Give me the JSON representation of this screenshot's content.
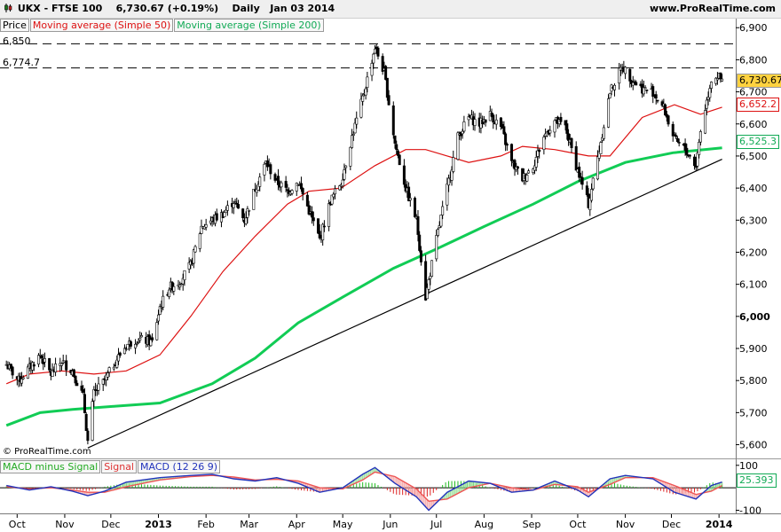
{
  "header": {
    "instrument": "UKX - FTSE 100",
    "quote": "6,730.67 (+0.19%)",
    "period": "Daily",
    "date": "Jan 03 2014",
    "site": "www.ProRealTime.com"
  },
  "legend": {
    "price": "Price",
    "ma50": "Moving average (Simple 50)",
    "ma200": "Moving average (Simple 200)"
  },
  "level_labels": {
    "l1": "6,850",
    "l2": "6,774.7"
  },
  "badges": {
    "last": "6,730.67",
    "ma50": "6,652.2",
    "ma200": "6,525.3",
    "macd": "25.393"
  },
  "copyright": "© ProRealTime.com",
  "macd_legend": {
    "hist": "MACD minus Signal",
    "signal": "Signal",
    "macd": "MACD (12 26 9)"
  },
  "colors": {
    "ma50": "#dd1111",
    "ma200": "#11cc55",
    "trendline": "#000000",
    "candle_up": "#ffffff",
    "candle_down": "#000000",
    "macd_line": "#2233bb",
    "signal_line": "#ee5555",
    "hist_pos": "#22bb22",
    "hist_neg": "#dd2222",
    "last_badge": "#ffd23f"
  },
  "chart_data": [
    {
      "type": "candlestick",
      "title": "UKX - FTSE 100",
      "ylim": [
        5560,
        6920
      ],
      "y_ticks": [
        5600,
        5700,
        5800,
        5900,
        6000,
        6100,
        6200,
        6300,
        6400,
        6500,
        6600,
        6700,
        6800,
        6900
      ],
      "y_tick_labels": [
        "5,600",
        "5,700",
        "5,800",
        "5,900",
        "6,000",
        "6,100",
        "6,200",
        "6,300",
        "6,400",
        "6,500",
        "6,600",
        "6,700",
        "6,800",
        "6,900"
      ],
      "y_tick_emphasis": "6,000",
      "x_tick_labels": [
        "Oct",
        "Nov",
        "Dec",
        "2013",
        "Feb",
        "Mar",
        "Apr",
        "May",
        "Jun",
        "Jul",
        "Aug",
        "Sep",
        "Oct",
        "Nov",
        "Dec",
        "2014"
      ],
      "x_tick_dates": [
        "2012-10-01",
        "2012-11-01",
        "2012-12-01",
        "2013-01-01",
        "2013-02-01",
        "2013-03-01",
        "2013-04-01",
        "2013-05-01",
        "2013-06-01",
        "2013-07-01",
        "2013-08-01",
        "2013-09-01",
        "2013-10-01",
        "2013-11-01",
        "2013-12-01",
        "2014-01-01"
      ],
      "horizontal_levels": [
        6850,
        6774.7
      ],
      "trendline": [
        [
          "2012-11-16",
          5590
        ],
        [
          "2014-01-03",
          6490
        ]
      ],
      "close_path": [
        [
          "2012-09-24",
          5850
        ],
        [
          "2012-10-02",
          5800
        ],
        [
          "2012-10-09",
          5840
        ],
        [
          "2012-10-16",
          5880
        ],
        [
          "2012-10-23",
          5820
        ],
        [
          "2012-10-30",
          5860
        ],
        [
          "2012-11-06",
          5830
        ],
        [
          "2012-11-13",
          5750
        ],
        [
          "2012-11-16",
          5610
        ],
        [
          "2012-11-20",
          5760
        ],
        [
          "2012-11-27",
          5800
        ],
        [
          "2012-12-04",
          5860
        ],
        [
          "2012-12-11",
          5910
        ],
        [
          "2012-12-18",
          5930
        ],
        [
          "2012-12-28",
          5920
        ],
        [
          "2013-01-02",
          6030
        ],
        [
          "2013-01-08",
          6090
        ],
        [
          "2013-01-15",
          6110
        ],
        [
          "2013-01-22",
          6160
        ],
        [
          "2013-01-29",
          6280
        ],
        [
          "2013-02-05",
          6300
        ],
        [
          "2013-02-12",
          6320
        ],
        [
          "2013-02-19",
          6360
        ],
        [
          "2013-02-26",
          6300
        ],
        [
          "2013-03-05",
          6400
        ],
        [
          "2013-03-12",
          6480
        ],
        [
          "2013-03-19",
          6420
        ],
        [
          "2013-03-26",
          6390
        ],
        [
          "2013-04-02",
          6420
        ],
        [
          "2013-04-09",
          6330
        ],
        [
          "2013-04-16",
          6240
        ],
        [
          "2013-04-23",
          6360
        ],
        [
          "2013-04-30",
          6420
        ],
        [
          "2013-05-07",
          6560
        ],
        [
          "2013-05-14",
          6680
        ],
        [
          "2013-05-22",
          6840
        ],
        [
          "2013-05-28",
          6760
        ],
        [
          "2013-06-04",
          6540
        ],
        [
          "2013-06-11",
          6400
        ],
        [
          "2013-06-18",
          6300
        ],
        [
          "2013-06-24",
          6060
        ],
        [
          "2013-07-01",
          6240
        ],
        [
          "2013-07-08",
          6400
        ],
        [
          "2013-07-15",
          6560
        ],
        [
          "2013-07-22",
          6620
        ],
        [
          "2013-07-29",
          6600
        ],
        [
          "2013-08-05",
          6630
        ],
        [
          "2013-08-12",
          6590
        ],
        [
          "2013-08-19",
          6480
        ],
        [
          "2013-08-26",
          6430
        ],
        [
          "2013-09-02",
          6470
        ],
        [
          "2013-09-09",
          6560
        ],
        [
          "2013-09-16",
          6610
        ],
        [
          "2013-09-23",
          6590
        ],
        [
          "2013-09-30",
          6470
        ],
        [
          "2013-10-08",
          6350
        ],
        [
          "2013-10-15",
          6520
        ],
        [
          "2013-10-22",
          6700
        ],
        [
          "2013-10-30",
          6780
        ],
        [
          "2013-11-05",
          6740
        ],
        [
          "2013-11-12",
          6710
        ],
        [
          "2013-11-19",
          6700
        ],
        [
          "2013-11-26",
          6650
        ],
        [
          "2013-12-03",
          6550
        ],
        [
          "2013-12-10",
          6520
        ],
        [
          "2013-12-17",
          6470
        ],
        [
          "2013-12-20",
          6580
        ],
        [
          "2013-12-27",
          6740
        ],
        [
          "2013-12-31",
          6750
        ],
        [
          "2014-01-03",
          6730.67
        ]
      ],
      "series": [
        {
          "name": "Moving average (Simple 50)",
          "points": [
            [
              "2012-09-24",
              5790
            ],
            [
              "2012-10-09",
              5820
            ],
            [
              "2012-10-30",
              5830
            ],
            [
              "2012-11-20",
              5820
            ],
            [
              "2012-12-11",
              5830
            ],
            [
              "2013-01-02",
              5880
            ],
            [
              "2013-01-22",
              6000
            ],
            [
              "2013-02-12",
              6140
            ],
            [
              "2013-03-05",
              6250
            ],
            [
              "2013-03-26",
              6350
            ],
            [
              "2013-04-09",
              6390
            ],
            [
              "2013-04-30",
              6400
            ],
            [
              "2013-05-22",
              6470
            ],
            [
              "2013-06-11",
              6520
            ],
            [
              "2013-06-24",
              6520
            ],
            [
              "2013-07-08",
              6500
            ],
            [
              "2013-07-22",
              6480
            ],
            [
              "2013-08-12",
              6500
            ],
            [
              "2013-08-26",
              6530
            ],
            [
              "2013-09-16",
              6520
            ],
            [
              "2013-10-08",
              6500
            ],
            [
              "2013-10-22",
              6500
            ],
            [
              "2013-11-12",
              6620
            ],
            [
              "2013-12-03",
              6660
            ],
            [
              "2013-12-20",
              6630
            ],
            [
              "2014-01-03",
              6652.2
            ]
          ]
        },
        {
          "name": "Moving average (Simple 200)",
          "points": [
            [
              "2012-09-24",
              5660
            ],
            [
              "2012-10-16",
              5700
            ],
            [
              "2012-11-06",
              5710
            ],
            [
              "2012-12-04",
              5720
            ],
            [
              "2013-01-02",
              5730
            ],
            [
              "2013-02-05",
              5790
            ],
            [
              "2013-03-05",
              5870
            ],
            [
              "2013-04-02",
              5980
            ],
            [
              "2013-05-01",
              6060
            ],
            [
              "2013-06-03",
              6150
            ],
            [
              "2013-07-01",
              6210
            ],
            [
              "2013-08-01",
              6280
            ],
            [
              "2013-09-02",
              6350
            ],
            [
              "2013-10-01",
              6420
            ],
            [
              "2013-11-01",
              6480
            ],
            [
              "2013-12-02",
              6510
            ],
            [
              "2014-01-03",
              6525.3
            ]
          ]
        }
      ]
    },
    {
      "type": "macd",
      "title": "MACD (12 26 9)",
      "ylim": [
        -110,
        115
      ],
      "y_ticks": [
        100,
        -100
      ],
      "y_tick_labels": [
        "100",
        "-100"
      ],
      "zero_line": 0,
      "series": [
        {
          "name": "MACD (12 26 9)",
          "points": [
            [
              "2012-09-24",
              10
            ],
            [
              "2012-10-09",
              -10
            ],
            [
              "2012-10-23",
              5
            ],
            [
              "2012-11-06",
              -15
            ],
            [
              "2012-11-16",
              -35
            ],
            [
              "2012-11-27",
              -15
            ],
            [
              "2012-12-11",
              25
            ],
            [
              "2013-01-02",
              45
            ],
            [
              "2013-01-22",
              55
            ],
            [
              "2013-02-05",
              60
            ],
            [
              "2013-02-19",
              40
            ],
            [
              "2013-03-05",
              30
            ],
            [
              "2013-03-19",
              45
            ],
            [
              "2013-04-02",
              20
            ],
            [
              "2013-04-16",
              -20
            ],
            [
              "2013-05-01",
              0
            ],
            [
              "2013-05-14",
              60
            ],
            [
              "2013-05-22",
              90
            ],
            [
              "2013-06-04",
              20
            ],
            [
              "2013-06-18",
              -40
            ],
            [
              "2013-06-26",
              -100
            ],
            [
              "2013-07-08",
              -20
            ],
            [
              "2013-07-22",
              30
            ],
            [
              "2013-08-05",
              20
            ],
            [
              "2013-08-19",
              -20
            ],
            [
              "2013-09-02",
              -10
            ],
            [
              "2013-09-16",
              30
            ],
            [
              "2013-10-01",
              -10
            ],
            [
              "2013-10-08",
              -40
            ],
            [
              "2013-10-22",
              40
            ],
            [
              "2013-11-01",
              55
            ],
            [
              "2013-11-19",
              40
            ],
            [
              "2013-12-03",
              -20
            ],
            [
              "2013-12-17",
              -50
            ],
            [
              "2013-12-27",
              10
            ],
            [
              "2014-01-03",
              25.393
            ]
          ]
        },
        {
          "name": "Signal",
          "points": [
            [
              "2012-09-24",
              5
            ],
            [
              "2012-10-09",
              -5
            ],
            [
              "2012-10-23",
              0
            ],
            [
              "2012-11-06",
              -10
            ],
            [
              "2012-11-16",
              -20
            ],
            [
              "2012-11-27",
              -20
            ],
            [
              "2012-12-11",
              5
            ],
            [
              "2013-01-02",
              35
            ],
            [
              "2013-01-22",
              50
            ],
            [
              "2013-02-05",
              55
            ],
            [
              "2013-02-19",
              48
            ],
            [
              "2013-03-05",
              35
            ],
            [
              "2013-03-19",
              38
            ],
            [
              "2013-04-02",
              30
            ],
            [
              "2013-04-16",
              0
            ],
            [
              "2013-05-01",
              -5
            ],
            [
              "2013-05-14",
              35
            ],
            [
              "2013-05-22",
              70
            ],
            [
              "2013-06-04",
              50
            ],
            [
              "2013-06-18",
              -5
            ],
            [
              "2013-06-26",
              -60
            ],
            [
              "2013-07-08",
              -50
            ],
            [
              "2013-07-22",
              0
            ],
            [
              "2013-08-05",
              20
            ],
            [
              "2013-08-19",
              0
            ],
            [
              "2013-09-02",
              -10
            ],
            [
              "2013-09-16",
              15
            ],
            [
              "2013-10-01",
              5
            ],
            [
              "2013-10-08",
              -20
            ],
            [
              "2013-10-22",
              15
            ],
            [
              "2013-11-01",
              45
            ],
            [
              "2013-11-19",
              45
            ],
            [
              "2013-12-03",
              10
            ],
            [
              "2013-12-17",
              -30
            ],
            [
              "2013-12-27",
              -15
            ],
            [
              "2014-01-03",
              10
            ]
          ]
        }
      ]
    }
  ]
}
